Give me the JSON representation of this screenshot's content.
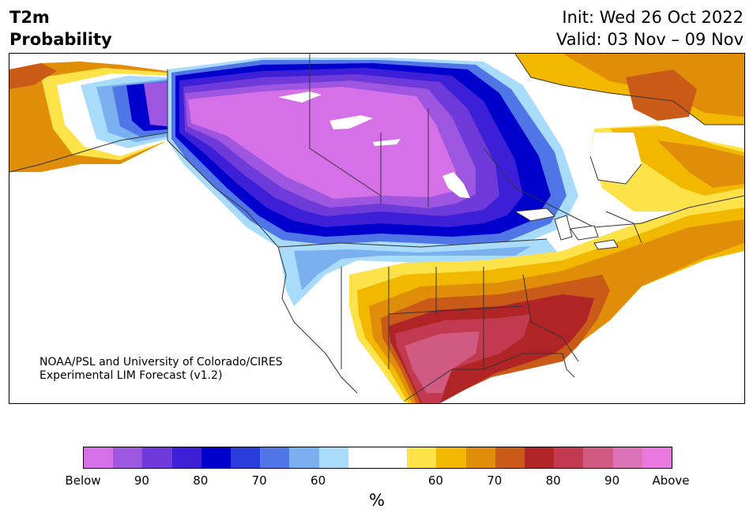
{
  "header": {
    "title_line1": "T2m",
    "title_line2": "Probability",
    "init": "Init: Wed 26 Oct 2022",
    "valid": "Valid: 03 Nov – 09 Nov"
  },
  "credit": {
    "line1": "NOAA/PSL and University of Colorado/CIRES",
    "line2": "Experimental LIM Forecast (v1.2)"
  },
  "colorbar": {
    "unit": "%",
    "colors": [
      "#d570e8",
      "#9e55e0",
      "#6e3ada",
      "#3d1fd8",
      "#0000cd",
      "#2a3ddc",
      "#5075e6",
      "#7ab0f0",
      "#a9dbfb",
      "#ffffff",
      "#ffffff",
      "#fde24a",
      "#f2b800",
      "#e08e0a",
      "#c95a18",
      "#b02426",
      "#c23a50",
      "#d05a82",
      "#db72b8",
      "#e878de"
    ],
    "ticks": [
      "Below",
      "90",
      "80",
      "70",
      "60",
      "60",
      "70",
      "80",
      "90",
      "Above"
    ]
  },
  "colors": {
    "below_extreme": "#d570e8",
    "above_extreme": "#e878de",
    "background": "#ffffff"
  }
}
